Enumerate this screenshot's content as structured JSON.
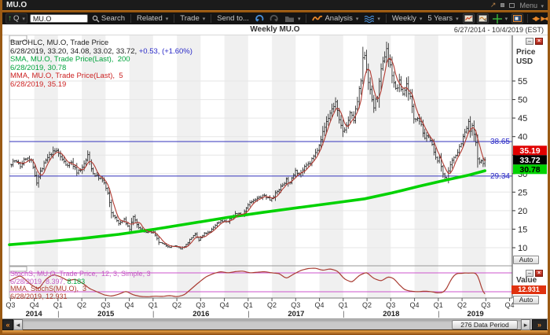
{
  "window": {
    "title": "MU.O"
  },
  "titlebar": {
    "menu_label": "Menu"
  },
  "toolbar": {
    "quote_label": "Q",
    "symbol_input": "MU.O",
    "search_label": "Search",
    "related_label": "Related",
    "trade_label": "Trade",
    "send_to_label": "Send to...",
    "analysis_label": "Analysis",
    "interval_label": "Weekly",
    "range_label": "5 Years"
  },
  "chart_header": {
    "title": "Weekly MU.O",
    "date_range": "6/27/2014 - 10/4/2019 (EST)"
  },
  "price_panel": {
    "axis_title_line1": "Price",
    "axis_title_line2": "USD",
    "auto_label": "Auto",
    "ticks": [
      55,
      50,
      45,
      40,
      35,
      30,
      25,
      20,
      15,
      10
    ],
    "badges": [
      {
        "label": "35.19",
        "bg": "#e00000",
        "fg": "#ffffff"
      },
      {
        "label": "33.72",
        "bg": "#000000",
        "fg": "#ffffff"
      },
      {
        "label": "30.78",
        "bg": "#00d200",
        "fg": "#000000"
      }
    ],
    "legend": [
      {
        "segments": [
          {
            "text": "BarOHLC, MU.O, Trade Price",
            "color": "#222222"
          }
        ]
      },
      {
        "segments": [
          {
            "text": "6/28/2019, 33.20, 34.08, 33.02, 33.72, ",
            "color": "#222222"
          },
          {
            "text": "+0.53, (+1.60%)",
            "color": "#2929c8"
          }
        ]
      },
      {
        "segments": [
          {
            "text": "SMA, MU.O, Trade Price(Last),  200",
            "color": "#00a33c"
          }
        ]
      },
      {
        "segments": [
          {
            "text": "6/28/2019, 30.78",
            "color": "#00a33c"
          }
        ]
      },
      {
        "segments": [
          {
            "text": "MMA, MU.O, Trade Price(Last),  5",
            "color": "#cc2222"
          }
        ]
      },
      {
        "segments": [
          {
            "text": "6/28/2019, 35.19",
            "color": "#cc2222"
          }
        ]
      }
    ]
  },
  "stoch_panel": {
    "axis_title": "Value",
    "auto_label": "Auto",
    "badge_label": "12.931",
    "legend": [
      {
        "segments": [
          {
            "text": "StochS, MU.O, Trade Price,  12, 3, Simple, 3",
            "color": "#c45ac4"
          }
        ]
      },
      {
        "segments": [
          {
            "text": "6/28/2019, 8.397, ",
            "color": "#c45ac4"
          },
          {
            "text": "8.183",
            "color": "#00a33c"
          }
        ]
      },
      {
        "segments": [
          {
            "text": "MMA, StochS(MU.O),  3",
            "color": "#b03a2e"
          }
        ]
      },
      {
        "segments": [
          {
            "text": "6/28/2019, 12.931",
            "color": "#b03a2e"
          }
        ]
      }
    ]
  },
  "x_axis": {
    "quarters": [
      "Q3",
      "Q4",
      "Q1",
      "Q2",
      "Q3",
      "Q4",
      "Q1",
      "Q2",
      "Q3",
      "Q4",
      "Q1",
      "Q2",
      "Q3",
      "Q4",
      "Q1",
      "Q2",
      "Q3",
      "Q4",
      "Q1",
      "Q2",
      "Q3",
      "Q4"
    ],
    "years": [
      {
        "label": "2014",
        "t0": 0,
        "t1": 26.86
      },
      {
        "label": "2015",
        "t0": 26.86,
        "t1": 79.0
      },
      {
        "label": "2016",
        "t0": 79.0,
        "t1": 131.29
      },
      {
        "label": "2017",
        "t0": 131.29,
        "t1": 183.43
      },
      {
        "label": "2018",
        "t0": 183.43,
        "t1": 235.57
      },
      {
        "label": "2019",
        "t0": 235.57,
        "t1": 276
      }
    ]
  },
  "scrollbar": {
    "thumb_label": "276 Data Period"
  },
  "chart_data": {
    "type": "ohlc",
    "symbol": "MU.O",
    "interval": "Weekly",
    "title": "Weekly MU.O",
    "x_range_weeks": [
      0,
      276
    ],
    "x_origin_date": "6/27/2014",
    "x_end_date": "10/4/2019",
    "data_end_week": 261,
    "ylim": [
      8,
      66
    ],
    "levels": [
      {
        "value": 38.65,
        "label": "38.65"
      },
      {
        "value": 29.34,
        "label": "29.34"
      }
    ],
    "stoch_levels": [
      80,
      20
    ],
    "last": {
      "date": "6/28/2019",
      "open": 33.2,
      "high": 34.08,
      "low": 33.02,
      "close": 33.72,
      "change": "+0.53",
      "change_pct": "+1.60%",
      "sma200": 30.78,
      "mma5": 35.19,
      "stoch_k": 8.397,
      "stoch_d": 8.183,
      "stoch_mma": 12.931
    },
    "close_keypoints": [
      [
        0,
        32.5
      ],
      [
        3,
        33.5
      ],
      [
        6,
        32.0
      ],
      [
        9,
        34.3
      ],
      [
        12,
        33.2
      ],
      [
        15,
        27.8
      ],
      [
        17,
        30.5
      ],
      [
        20,
        33.5
      ],
      [
        23,
        35.5
      ],
      [
        26,
        36.2
      ],
      [
        28,
        34.5
      ],
      [
        31,
        32.5
      ],
      [
        34,
        33.0
      ],
      [
        37,
        30.5
      ],
      [
        40,
        31.5
      ],
      [
        43,
        34.8
      ],
      [
        46,
        30.0
      ],
      [
        49,
        29.0
      ],
      [
        52,
        27.5
      ],
      [
        54,
        24.5
      ],
      [
        56,
        19.5
      ],
      [
        58,
        18.0
      ],
      [
        60,
        16.5
      ],
      [
        63,
        17.5
      ],
      [
        66,
        15.0
      ],
      [
        68,
        18.5
      ],
      [
        70,
        16.0
      ],
      [
        73,
        14.5
      ],
      [
        76,
        14.2
      ],
      [
        79,
        14.1
      ],
      [
        82,
        11.5
      ],
      [
        85,
        10.8
      ],
      [
        88,
        10.2
      ],
      [
        91,
        10.5
      ],
      [
        94,
        9.6
      ],
      [
        97,
        10.8
      ],
      [
        100,
        12.8
      ],
      [
        102,
        13.5
      ],
      [
        104,
        12.0
      ],
      [
        107,
        13.8
      ],
      [
        110,
        14.2
      ],
      [
        113,
        16.2
      ],
      [
        116,
        17.3
      ],
      [
        120,
        17.0
      ],
      [
        124,
        19.2
      ],
      [
        128,
        19.0
      ],
      [
        131,
        21.8
      ],
      [
        134,
        22.6
      ],
      [
        137,
        23.5
      ],
      [
        140,
        24.1
      ],
      [
        143,
        23.0
      ],
      [
        146,
        24.5
      ],
      [
        149,
        26.4
      ],
      [
        152,
        28.4
      ],
      [
        154,
        27.2
      ],
      [
        157,
        31.2
      ],
      [
        159,
        29.8
      ],
      [
        162,
        31.5
      ],
      [
        165,
        33.0
      ],
      [
        168,
        35.5
      ],
      [
        171,
        39.5
      ],
      [
        174,
        44.0
      ],
      [
        177,
        47.5
      ],
      [
        179,
        49.2
      ],
      [
        181,
        44.0
      ],
      [
        183,
        41.5
      ],
      [
        185,
        43.0
      ],
      [
        187,
        46.0
      ],
      [
        189,
        44.5
      ],
      [
        191,
        49.5
      ],
      [
        193,
        55.0
      ],
      [
        194,
        60.5
      ],
      [
        195,
        62.5
      ],
      [
        196,
        58.5
      ],
      [
        198,
        52.0
      ],
      [
        200,
        48.0
      ],
      [
        202,
        51.0
      ],
      [
        204,
        57.5
      ],
      [
        206,
        62.0
      ],
      [
        207,
        64.0
      ],
      [
        208,
        61.0
      ],
      [
        210,
        57.0
      ],
      [
        212,
        52.5
      ],
      [
        214,
        54.5
      ],
      [
        216,
        51.5
      ],
      [
        218,
        54.0
      ],
      [
        220,
        50.5
      ],
      [
        222,
        45.0
      ],
      [
        224,
        45.5
      ],
      [
        226,
        43.5
      ],
      [
        228,
        39.0
      ],
      [
        230,
        40.5
      ],
      [
        232,
        37.5
      ],
      [
        234,
        34.0
      ],
      [
        236,
        33.8
      ],
      [
        238,
        30.0
      ],
      [
        240,
        28.6
      ],
      [
        242,
        32.0
      ],
      [
        244,
        34.5
      ],
      [
        246,
        36.0
      ],
      [
        248,
        38.5
      ],
      [
        250,
        41.0
      ],
      [
        252,
        43.5
      ],
      [
        253,
        41.5
      ],
      [
        254,
        42.5
      ],
      [
        255,
        40.5
      ],
      [
        256,
        38.0
      ],
      [
        257,
        34.5
      ],
      [
        258,
        32.8
      ],
      [
        259,
        33.5
      ],
      [
        260,
        32.8
      ],
      [
        261,
        33.72
      ]
    ],
    "sma200_keypoints": [
      [
        0,
        10.8
      ],
      [
        20,
        11.6
      ],
      [
        40,
        12.5
      ],
      [
        60,
        13.6
      ],
      [
        80,
        15.0
      ],
      [
        100,
        16.6
      ],
      [
        120,
        18.2
      ],
      [
        140,
        19.6
      ],
      [
        160,
        20.9
      ],
      [
        180,
        22.2
      ],
      [
        195,
        23.2
      ],
      [
        210,
        24.8
      ],
      [
        225,
        26.6
      ],
      [
        240,
        28.3
      ],
      [
        252,
        29.6
      ],
      [
        261,
        30.78
      ]
    ],
    "stoch_keypoints": [
      [
        0,
        55
      ],
      [
        6,
        72
      ],
      [
        12,
        42
      ],
      [
        16,
        28
      ],
      [
        20,
        60
      ],
      [
        24,
        75
      ],
      [
        28,
        68
      ],
      [
        32,
        55
      ],
      [
        36,
        60
      ],
      [
        40,
        48
      ],
      [
        44,
        30
      ],
      [
        48,
        20
      ],
      [
        52,
        10
      ],
      [
        56,
        6
      ],
      [
        60,
        12
      ],
      [
        64,
        22
      ],
      [
        68,
        10
      ],
      [
        72,
        5
      ],
      [
        76,
        4
      ],
      [
        80,
        6
      ],
      [
        84,
        5
      ],
      [
        88,
        8
      ],
      [
        92,
        4
      ],
      [
        96,
        10
      ],
      [
        100,
        30
      ],
      [
        104,
        50
      ],
      [
        108,
        68
      ],
      [
        112,
        78
      ],
      [
        116,
        84
      ],
      [
        120,
        80
      ],
      [
        124,
        84
      ],
      [
        128,
        86
      ],
      [
        132,
        80
      ],
      [
        136,
        82
      ],
      [
        140,
        84
      ],
      [
        144,
        80
      ],
      [
        148,
        78
      ],
      [
        152,
        62
      ],
      [
        156,
        76
      ],
      [
        160,
        88
      ],
      [
        164,
        94
      ],
      [
        168,
        95
      ],
      [
        172,
        88
      ],
      [
        176,
        93
      ],
      [
        180,
        86
      ],
      [
        184,
        60
      ],
      [
        188,
        50
      ],
      [
        192,
        72
      ],
      [
        196,
        82
      ],
      [
        200,
        62
      ],
      [
        204,
        54
      ],
      [
        208,
        68
      ],
      [
        211,
        62
      ],
      [
        214,
        42
      ],
      [
        217,
        26
      ],
      [
        220,
        22
      ],
      [
        224,
        20
      ],
      [
        228,
        22
      ],
      [
        232,
        20
      ],
      [
        235,
        16
      ],
      [
        238,
        18
      ],
      [
        240,
        30
      ],
      [
        242,
        55
      ],
      [
        244,
        72
      ],
      [
        246,
        79
      ],
      [
        248,
        78
      ],
      [
        250,
        80
      ],
      [
        252,
        79
      ],
      [
        254,
        80
      ],
      [
        256,
        79
      ],
      [
        257,
        72
      ],
      [
        258,
        55
      ],
      [
        259,
        35
      ],
      [
        260,
        18
      ],
      [
        261,
        13
      ]
    ]
  }
}
